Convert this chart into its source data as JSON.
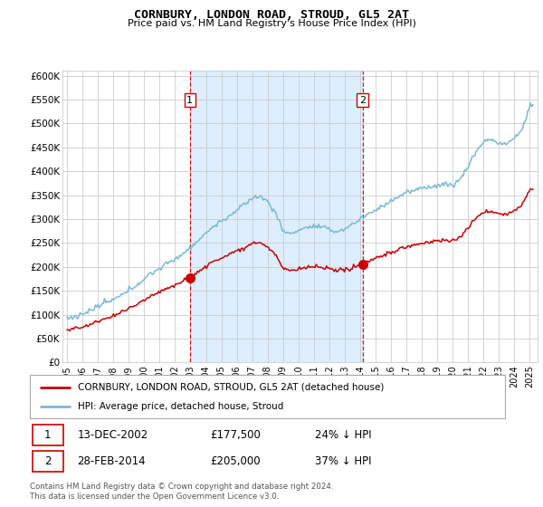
{
  "title": "CORNBURY, LONDON ROAD, STROUD, GL5 2AT",
  "subtitle": "Price paid vs. HM Land Registry's House Price Index (HPI)",
  "ylabel_ticks": [
    "£0",
    "£50K",
    "£100K",
    "£150K",
    "£200K",
    "£250K",
    "£300K",
    "£350K",
    "£400K",
    "£450K",
    "£500K",
    "£550K",
    "£600K"
  ],
  "ytick_values": [
    0,
    50000,
    100000,
    150000,
    200000,
    250000,
    300000,
    350000,
    400000,
    450000,
    500000,
    550000,
    600000
  ],
  "ylim": [
    0,
    610000
  ],
  "xlim_start": 1994.7,
  "xlim_end": 2025.5,
  "xtick_labels": [
    "1995",
    "1996",
    "1997",
    "1998",
    "1999",
    "2000",
    "2001",
    "2002",
    "2003",
    "2004",
    "2005",
    "2006",
    "2007",
    "2008",
    "2009",
    "2010",
    "2011",
    "2012",
    "2013",
    "2014",
    "2015",
    "2016",
    "2017",
    "2018",
    "2019",
    "2020",
    "2021",
    "2022",
    "2023",
    "2024",
    "2025"
  ],
  "hpi_color": "#7ab8d8",
  "price_color": "#cc0000",
  "marker_color": "#cc0000",
  "sale1_x": 2002.96,
  "sale1_y": 177500,
  "sale1_label": "1",
  "sale2_x": 2014.16,
  "sale2_y": 205000,
  "sale2_label": "2",
  "dashed_line_color": "#cc0000",
  "shade_color": "#ddeeff",
  "legend_line1": "CORNBURY, LONDON ROAD, STROUD, GL5 2AT (detached house)",
  "legend_line2": "HPI: Average price, detached house, Stroud",
  "note1_label": "1",
  "note1_date": "13-DEC-2002",
  "note1_price": "£177,500",
  "note1_rel": "24% ↓ HPI",
  "note2_label": "2",
  "note2_date": "28-FEB-2014",
  "note2_price": "£205,000",
  "note2_rel": "37% ↓ HPI",
  "footer": "Contains HM Land Registry data © Crown copyright and database right 2024.\nThis data is licensed under the Open Government Licence v3.0.",
  "plot_bg_color": "#ffffff",
  "grid_color": "#cccccc"
}
